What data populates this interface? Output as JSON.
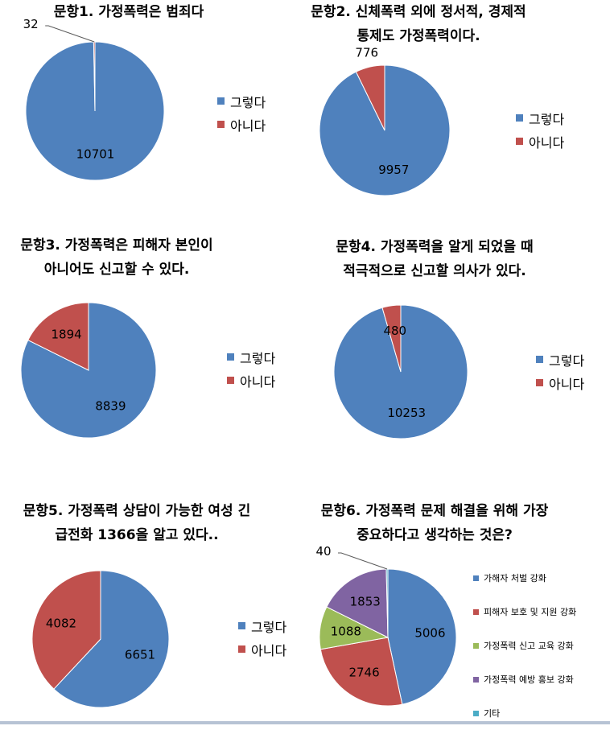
{
  "colors": {
    "blue": "#4f81bd",
    "red": "#c0504d",
    "green": "#9bbb59",
    "purple": "#8064a2",
    "cyan": "#4bacc6"
  },
  "chart_data": [
    {
      "type": "pie",
      "title_lines": [
        "문항1. 가정폭력은 범죄다"
      ],
      "categories": [
        "그렇다",
        "아니다"
      ],
      "values": [
        10701,
        32
      ],
      "colors": [
        "#4f81bd",
        "#c0504d"
      ],
      "legend": "right"
    },
    {
      "type": "pie",
      "title_lines": [
        "문항2. 신체폭력 외에 정서적, 경제적",
        "통제도 가정폭력이다."
      ],
      "categories": [
        "그렇다",
        "아니다"
      ],
      "values": [
        9957,
        776
      ],
      "colors": [
        "#4f81bd",
        "#c0504d"
      ],
      "legend": "right"
    },
    {
      "type": "pie",
      "title_lines": [
        "문항3. 가정폭력은 피해자 본인이",
        "아니어도 신고할 수 있다."
      ],
      "categories": [
        "그렇다",
        "아니다"
      ],
      "values": [
        8839,
        1894
      ],
      "colors": [
        "#4f81bd",
        "#c0504d"
      ],
      "legend": "right"
    },
    {
      "type": "pie",
      "title_lines": [
        "문항4. 가정폭력을 알게 되었을 때",
        "적극적으로 신고할 의사가 있다."
      ],
      "categories": [
        "그렇다",
        "아니다"
      ],
      "values": [
        10253,
        480
      ],
      "colors": [
        "#4f81bd",
        "#c0504d"
      ],
      "legend": "right"
    },
    {
      "type": "pie",
      "title_lines": [
        "문항5. 가정폭력 상담이 가능한 여성 긴",
        "급전화 1366을 알고 있다.."
      ],
      "categories": [
        "그렇다",
        "아니다"
      ],
      "values": [
        6651,
        4082
      ],
      "colors": [
        "#4f81bd",
        "#c0504d"
      ],
      "legend": "right"
    },
    {
      "type": "pie",
      "title_lines": [
        "문항6. 가정폭력 문제 해결을 위해 가장",
        "중요하다고 생각하는 것은?"
      ],
      "categories": [
        "가해자 처벌 강화",
        "피해자 보호 및 지원 강화",
        "가정폭력 신고 교육 강화",
        "가정폭력 예방 홍보 강화",
        "기타"
      ],
      "values": [
        5006,
        2746,
        1088,
        1853,
        40
      ],
      "colors": [
        "#4f81bd",
        "#c0504d",
        "#9bbb59",
        "#8064a2",
        "#4bacc6"
      ],
      "legend": "right"
    }
  ]
}
